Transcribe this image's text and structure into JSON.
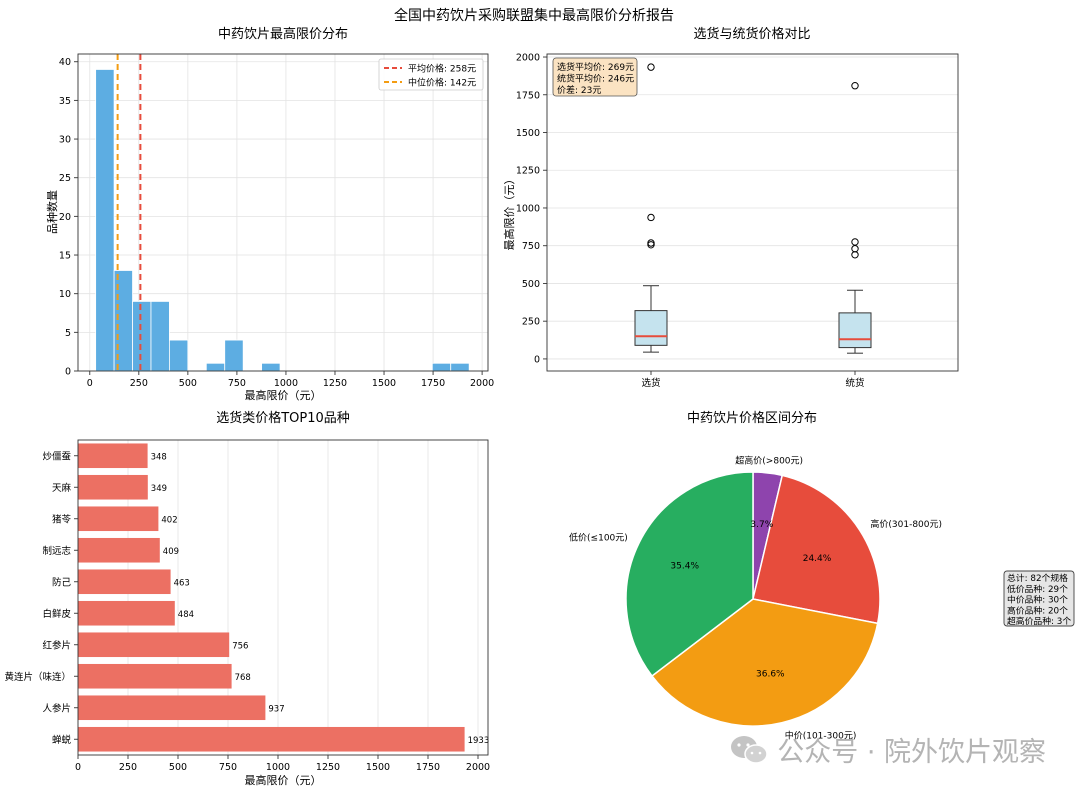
{
  "suptitle": "全国中药饮片采购联盟集中最高限价分析报告",
  "watermark": "公众号 · 院外饮片观察",
  "chart_data": [
    {
      "type": "bar",
      "subtype": "histogram",
      "title": "中药饮片最高限价分布",
      "xlabel": "最高限价（元）",
      "ylabel": "品种数量",
      "xlim": [
        -60,
        2030
      ],
      "ylim": [
        0,
        41
      ],
      "xticks": [
        0,
        250,
        500,
        750,
        1000,
        1250,
        1500,
        1750,
        2000
      ],
      "yticks": [
        0,
        5,
        10,
        15,
        20,
        25,
        30,
        35,
        40
      ],
      "bar_color": "#5dade2",
      "grid": true,
      "bins": [
        {
          "start": 30,
          "end": 124,
          "count": 39
        },
        {
          "start": 124,
          "end": 218,
          "count": 13
        },
        {
          "start": 218,
          "end": 312,
          "count": 9
        },
        {
          "start": 312,
          "end": 406,
          "count": 9
        },
        {
          "start": 406,
          "end": 500,
          "count": 4
        },
        {
          "start": 500,
          "end": 594,
          "count": 0
        },
        {
          "start": 594,
          "end": 688,
          "count": 1
        },
        {
          "start": 688,
          "end": 782,
          "count": 4
        },
        {
          "start": 782,
          "end": 876,
          "count": 0
        },
        {
          "start": 876,
          "end": 970,
          "count": 1
        },
        {
          "start": 970,
          "end": 1746,
          "count": 0
        },
        {
          "start": 1746,
          "end": 1840,
          "count": 1
        },
        {
          "start": 1840,
          "end": 1934,
          "count": 1
        }
      ],
      "lines": [
        {
          "value": 258,
          "color": "#e74c3c",
          "label": "平均价格: 258元"
        },
        {
          "value": 142,
          "color": "#f39c12",
          "label": "中位价格: 142元"
        }
      ],
      "legend": "top-right"
    },
    {
      "type": "box",
      "title": "选货与统货价格对比",
      "ylabel": "最高限价（元）",
      "ylim": [
        -80,
        2020
      ],
      "yticks": [
        0,
        250,
        500,
        750,
        1000,
        1250,
        1500,
        1750,
        2000
      ],
      "categories": [
        "选货",
        "统货"
      ],
      "boxes": [
        {
          "name": "选货",
          "whisker_low": 45,
          "q1": 90,
          "median": 150,
          "q3": 320,
          "whisker_high": 485,
          "outliers": [
            1933,
            937,
            768,
            756
          ]
        },
        {
          "name": "统货",
          "whisker_low": 38,
          "q1": 75,
          "median": 130,
          "q3": 305,
          "whisker_high": 455,
          "outliers": [
            1810,
            775,
            730,
            690
          ]
        }
      ],
      "box_color": "#c5e3ee",
      "median_color": "#e74c3c",
      "grid": true,
      "annotation": [
        "选货平均价: 269元",
        "统货平均价: 246元",
        "价差: 23元"
      ]
    },
    {
      "type": "bar",
      "orientation": "horizontal",
      "title": "选货类价格TOP10品种",
      "xlabel": "最高限价（元）",
      "xlim": [
        0,
        2050
      ],
      "xticks": [
        0,
        250,
        500,
        750,
        1000,
        1250,
        1500,
        1750,
        2000
      ],
      "categories": [
        "炒僵蚕",
        "天麻",
        "猪苓",
        "制远志",
        "防己",
        "白鲜皮",
        "红参片",
        "黄连片（味连）",
        "人参片",
        "蝉蜕"
      ],
      "values": [
        348,
        349,
        402,
        409,
        463,
        484,
        756,
        768,
        937,
        1933
      ],
      "bar_color": "#ec7063",
      "grid": true
    },
    {
      "type": "pie",
      "title": "中药饮片价格区间分布",
      "slices": [
        {
          "label": "超高价(>800元)",
          "value": 3.7,
          "pct": "3.7%",
          "color": "#8e44ad"
        },
        {
          "label": "高价(301-800元)",
          "value": 24.4,
          "pct": "24.4%",
          "color": "#e74c3c"
        },
        {
          "label": "中价(101-300元)",
          "value": 36.6,
          "pct": "36.6%",
          "color": "#f39c12"
        },
        {
          "label": "低价(≤100元)",
          "value": 35.4,
          "pct": "35.4%",
          "color": "#27ae60"
        }
      ],
      "summary": [
        "总计: 82个规格",
        "低价品种: 29个",
        "中价品种: 30个",
        "高价品种: 20个",
        "超高价品种: 3个"
      ]
    }
  ]
}
